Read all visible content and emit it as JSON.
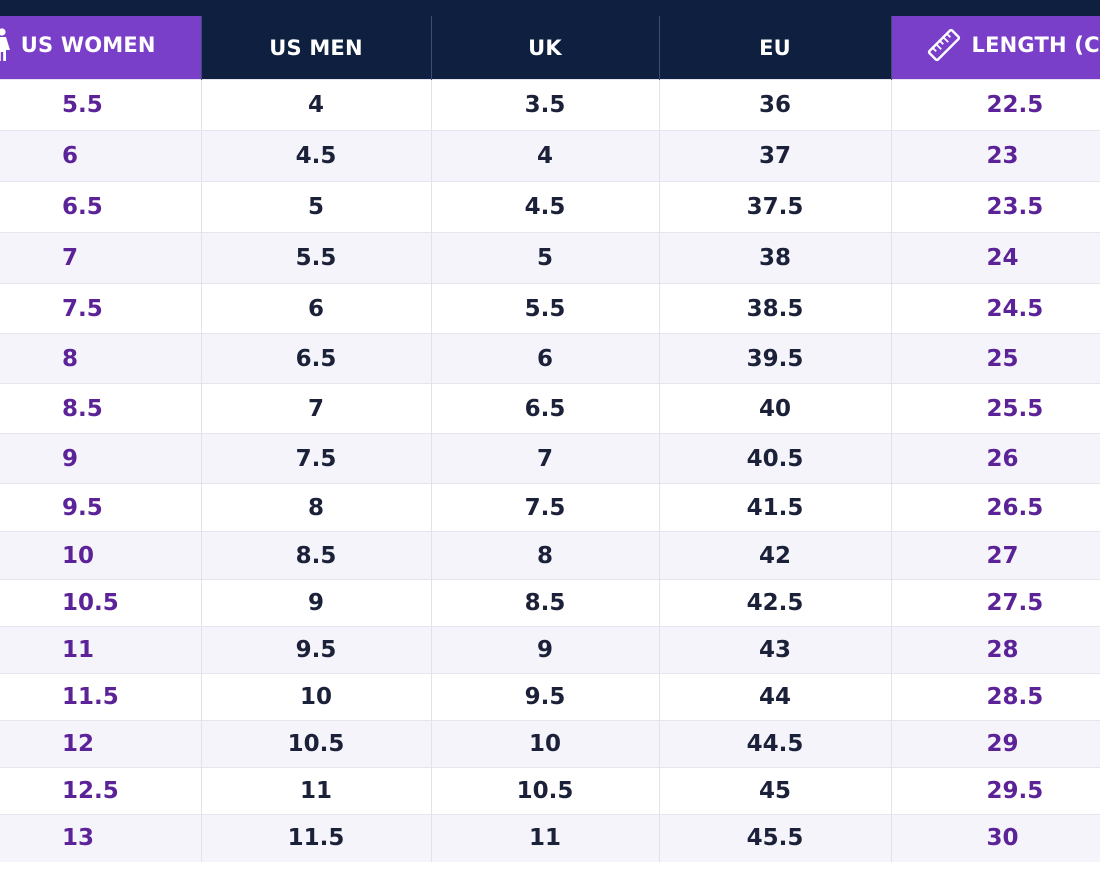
{
  "chart": {
    "headers": {
      "us_women": "US WOMEN",
      "us_men": "US MEN",
      "uk": "UK",
      "eu": "EU",
      "length_cm": "LENGTH (CM)"
    },
    "icons": {
      "us_women": "woman-icon",
      "length_cm": "ruler-icon"
    },
    "colors": {
      "header_purple": "#7a3fc8",
      "header_navy": "#0e1f3f",
      "purple_text": "#5b2397",
      "dark_text": "#1a2138",
      "stripe": "#f6f4fb"
    },
    "rows": [
      {
        "us_women": "5.5",
        "us_men": "4",
        "uk": "3.5",
        "eu": "36",
        "length_cm": "22.5"
      },
      {
        "us_women": "6",
        "us_men": "4.5",
        "uk": "4",
        "eu": "37",
        "length_cm": "23"
      },
      {
        "us_women": "6.5",
        "us_men": "5",
        "uk": "4.5",
        "eu": "37.5",
        "length_cm": "23.5"
      },
      {
        "us_women": "7",
        "us_men": "5.5",
        "uk": "5",
        "eu": "38",
        "length_cm": "24"
      },
      {
        "us_women": "7.5",
        "us_men": "6",
        "uk": "5.5",
        "eu": "38.5",
        "length_cm": "24.5"
      },
      {
        "us_women": "8",
        "us_men": "6.5",
        "uk": "6",
        "eu": "39.5",
        "length_cm": "25"
      },
      {
        "us_women": "8.5",
        "us_men": "7",
        "uk": "6.5",
        "eu": "40",
        "length_cm": "25.5"
      },
      {
        "us_women": "9",
        "us_men": "7.5",
        "uk": "7",
        "eu": "40.5",
        "length_cm": "26"
      },
      {
        "us_women": "9.5",
        "us_men": "8",
        "uk": "7.5",
        "eu": "41.5",
        "length_cm": "26.5"
      },
      {
        "us_women": "10",
        "us_men": "8.5",
        "uk": "8",
        "eu": "42",
        "length_cm": "27"
      },
      {
        "us_women": "10.5",
        "us_men": "9",
        "uk": "8.5",
        "eu": "42.5",
        "length_cm": "27.5"
      },
      {
        "us_women": "11",
        "us_men": "9.5",
        "uk": "9",
        "eu": "43",
        "length_cm": "28"
      },
      {
        "us_women": "11.5",
        "us_men": "10",
        "uk": "9.5",
        "eu": "44",
        "length_cm": "28.5"
      },
      {
        "us_women": "12",
        "us_men": "10.5",
        "uk": "10",
        "eu": "44.5",
        "length_cm": "29"
      },
      {
        "us_women": "12.5",
        "us_men": "11",
        "uk": "10.5",
        "eu": "45",
        "length_cm": "29.5"
      },
      {
        "us_women": "13",
        "us_men": "11.5",
        "uk": "11",
        "eu": "45.5",
        "length_cm": "30"
      }
    ]
  }
}
